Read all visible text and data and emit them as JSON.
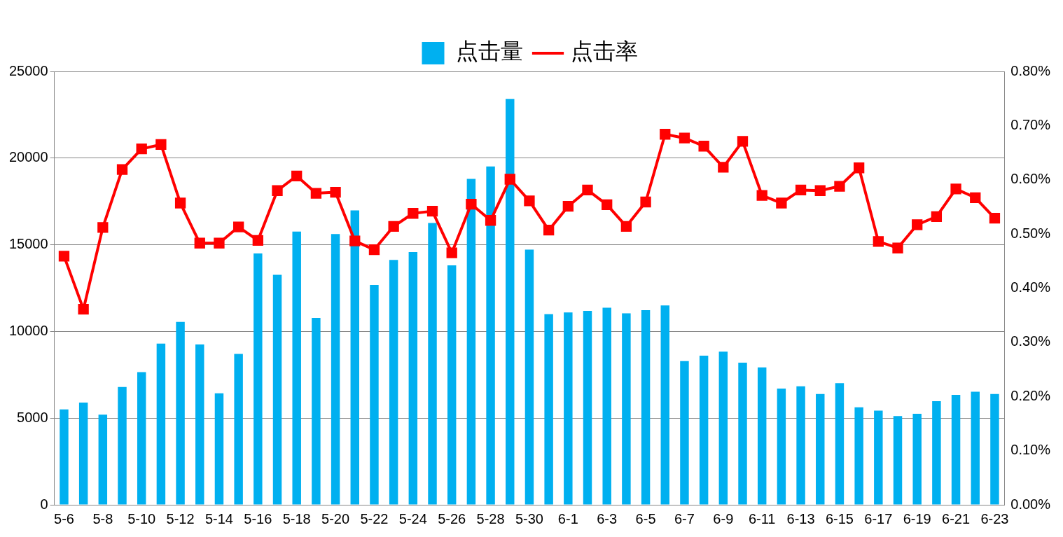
{
  "chart_data": {
    "type": "bar",
    "categories": [
      "5-6",
      null,
      "5-8",
      null,
      "5-10",
      null,
      "5-12",
      null,
      "5-14",
      null,
      "5-16",
      null,
      "5-18",
      null,
      "5-20",
      null,
      "5-22",
      null,
      "5-24",
      null,
      "5-26",
      null,
      "5-28",
      null,
      "5-30",
      null,
      "6-1",
      null,
      "6-3",
      null,
      "6-5",
      null,
      "6-7",
      null,
      "6-9",
      null,
      "6-11",
      null,
      "6-13",
      null,
      "6-15",
      null,
      "6-17",
      null,
      "6-19",
      null,
      "6-21",
      null,
      "6-23"
    ],
    "series": [
      {
        "name": "点击量",
        "color": "#00b0f0",
        "values": [
          5500,
          5900,
          5200,
          6800,
          7650,
          9300,
          10550,
          9250,
          6430,
          8700,
          14500,
          13270,
          15760,
          10780,
          15620,
          16980,
          12680,
          14130,
          14580,
          16260,
          13810,
          18800,
          19520,
          23410,
          14720,
          11000,
          11100,
          11190,
          11370,
          11050,
          11230,
          11500,
          8290,
          8600,
          8830,
          8200,
          7930,
          6700,
          6840,
          6390,
          7020,
          5620,
          5430,
          5120,
          5250,
          5980,
          6340,
          6520,
          6390
        ]
      },
      {
        "name": "点击率",
        "type": "line",
        "axis": "y2",
        "color": "#ff0000",
        "marker": "square",
        "values": [
          0.459,
          0.361,
          0.512,
          0.619,
          0.657,
          0.665,
          0.557,
          0.483,
          0.483,
          0.513,
          0.488,
          0.58,
          0.607,
          0.575,
          0.577,
          0.487,
          0.471,
          0.514,
          0.538,
          0.542,
          0.465,
          0.555,
          0.525,
          0.601,
          0.561,
          0.507,
          0.551,
          0.581,
          0.554,
          0.514,
          0.559,
          0.684,
          0.677,
          0.662,
          0.623,
          0.671,
          0.571,
          0.557,
          0.581,
          0.58,
          0.588,
          0.622,
          0.486,
          0.474,
          0.517,
          0.532,
          0.583,
          0.567,
          0.529
        ]
      }
    ],
    "ylim": [
      0,
      25000
    ],
    "yticks": [
      0,
      5000,
      10000,
      15000,
      20000,
      25000
    ],
    "y2lim": [
      0,
      0.8
    ],
    "y2ticks": [
      {
        "value": 0,
        "label": "0.00%"
      },
      {
        "value": 0.1,
        "label": "0.10%"
      },
      {
        "value": 0.2,
        "label": "0.20%"
      },
      {
        "value": 0.3,
        "label": "0.30%"
      },
      {
        "value": 0.4,
        "label": "0.40%"
      },
      {
        "value": 0.5,
        "label": "0.50%"
      },
      {
        "value": 0.6,
        "label": "0.60%"
      },
      {
        "value": 0.7,
        "label": "0.70%"
      },
      {
        "value": 0.8,
        "label": "0.80%"
      }
    ],
    "grid": "y",
    "legend": "top"
  }
}
